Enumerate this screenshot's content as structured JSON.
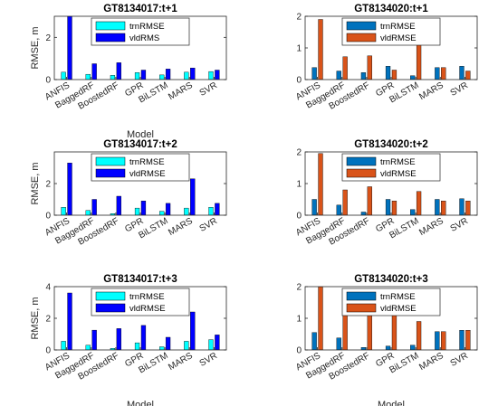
{
  "chart_data": [
    {
      "type": "bar",
      "title": "GT8134017:t+1",
      "xlabel": "Model",
      "ylabel": "RMSE, m",
      "ylim": [
        0,
        3
      ],
      "yticks": [
        "0",
        "2"
      ],
      "categories": [
        "ANFIS",
        "BaggedRF",
        "BoostedRF",
        "GPR",
        "BiLSTM",
        "MARS",
        "SVR"
      ],
      "legend_position": "top-center",
      "colors": [
        "#00ffff",
        "#0000ff"
      ],
      "series": [
        {
          "name": "trnRMSE",
          "values": [
            0.35,
            0.25,
            0.2,
            0.33,
            0.22,
            0.35,
            0.38
          ]
        },
        {
          "name": "vldRMS",
          "values": [
            3.0,
            0.75,
            0.8,
            0.45,
            0.5,
            0.55,
            0.45
          ]
        }
      ]
    },
    {
      "type": "bar",
      "title": "GT8134020:t+1",
      "xlabel": "",
      "ylabel": "",
      "ylim": [
        0,
        2
      ],
      "yticks": [
        "0",
        "1",
        "2"
      ],
      "categories": [
        "ANFIS",
        "BaggedRF",
        "BoostedRF",
        "GPR",
        "BiLSTM",
        "MARS",
        "SVR"
      ],
      "legend_position": "top-center",
      "colors": [
        "#0072bd",
        "#d95319"
      ],
      "series": [
        {
          "name": "trnRMSE",
          "values": [
            0.38,
            0.27,
            0.22,
            0.42,
            0.12,
            0.38,
            0.42
          ]
        },
        {
          "name": "vldRMSE",
          "values": [
            1.9,
            0.72,
            0.75,
            0.3,
            1.3,
            0.38,
            0.27
          ]
        }
      ]
    },
    {
      "type": "bar",
      "title": "GT8134017:t+2",
      "xlabel": "",
      "ylabel": "RMSE, m",
      "ylim": [
        0,
        4
      ],
      "yticks": [
        "0",
        "2"
      ],
      "categories": [
        "ANFIS",
        "BaggedRF",
        "BoostedRF",
        "GPR",
        "BiLSTM",
        "MARS",
        "SVR"
      ],
      "legend_position": "top-center",
      "colors": [
        "#00ffff",
        "#0000ff"
      ],
      "series": [
        {
          "name": "trnRMSE",
          "values": [
            0.5,
            0.3,
            0.1,
            0.45,
            0.25,
            0.45,
            0.5
          ]
        },
        {
          "name": "vldRMSE",
          "values": [
            3.3,
            1.0,
            1.2,
            0.9,
            0.75,
            2.3,
            0.75
          ]
        }
      ]
    },
    {
      "type": "bar",
      "title": "GT8134020:t+2",
      "xlabel": "",
      "ylabel": "",
      "ylim": [
        0,
        2
      ],
      "yticks": [
        "0",
        "1",
        "2"
      ],
      "categories": [
        "ANFIS",
        "BaggedRF",
        "BoostedRF",
        "GPR",
        "BiLSTM",
        "MARS",
        "SVR"
      ],
      "legend_position": "top-center",
      "colors": [
        "#0072bd",
        "#d95319"
      ],
      "series": [
        {
          "name": "trnRMSE",
          "values": [
            0.5,
            0.32,
            0.1,
            0.5,
            0.18,
            0.5,
            0.52
          ]
        },
        {
          "name": "vldRMSE",
          "values": [
            1.95,
            0.8,
            0.9,
            0.45,
            0.75,
            0.45,
            0.45
          ]
        }
      ]
    },
    {
      "type": "bar",
      "title": "GT8134017:t+3",
      "xlabel": "Model",
      "ylabel": "RMSE, m",
      "ylim": [
        0,
        4
      ],
      "yticks": [
        "0",
        "2",
        "4"
      ],
      "categories": [
        "ANFIS",
        "BaggedRF",
        "BoostedRF",
        "GPR",
        "BiLSTM",
        "MARS",
        "SVR"
      ],
      "legend_position": "top-center",
      "colors": [
        "#00ffff",
        "#0000ff"
      ],
      "series": [
        {
          "name": "trnRMSE",
          "values": [
            0.55,
            0.3,
            0.1,
            0.45,
            0.2,
            0.55,
            0.65
          ]
        },
        {
          "name": "vldRMSE",
          "values": [
            3.6,
            1.25,
            1.35,
            1.55,
            0.8,
            2.4,
            0.95
          ]
        }
      ]
    },
    {
      "type": "bar",
      "title": "GT8134020:t+3",
      "xlabel": "Model",
      "ylabel": "",
      "ylim": [
        0,
        2
      ],
      "yticks": [
        "0",
        "1",
        "2"
      ],
      "categories": [
        "ANFIS",
        "BaggedRF",
        "BoostedRF",
        "GPR",
        "BiLSTM",
        "MARS",
        "SVR"
      ],
      "legend_position": "top-center",
      "colors": [
        "#0072bd",
        "#d95319"
      ],
      "series": [
        {
          "name": "trnRMSE",
          "values": [
            0.55,
            0.38,
            0.08,
            0.12,
            0.15,
            0.58,
            0.62
          ]
        },
        {
          "name": "vldRMSE",
          "values": [
            2.0,
            1.1,
            1.8,
            1.5,
            0.9,
            0.58,
            0.62
          ]
        }
      ]
    }
  ]
}
